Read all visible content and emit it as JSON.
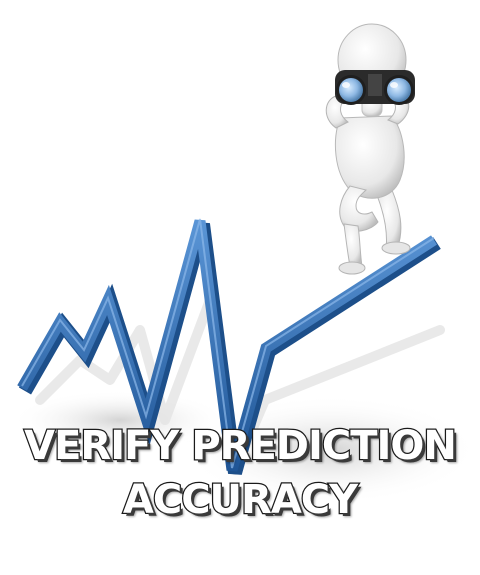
{
  "caption": {
    "line1": "VERIFY PREDICTION",
    "line2": "ACCURACY"
  },
  "colors": {
    "line": "#2f6fb5",
    "line_dark": "#1d4f8a",
    "figure": "#f2f2f2",
    "binocular_lens": "#9cc3ea",
    "shadow": "#d9d9d9"
  },
  "icons": {
    "figure": "binocular-figure-icon",
    "trend": "zigzag-trend-line-icon"
  }
}
